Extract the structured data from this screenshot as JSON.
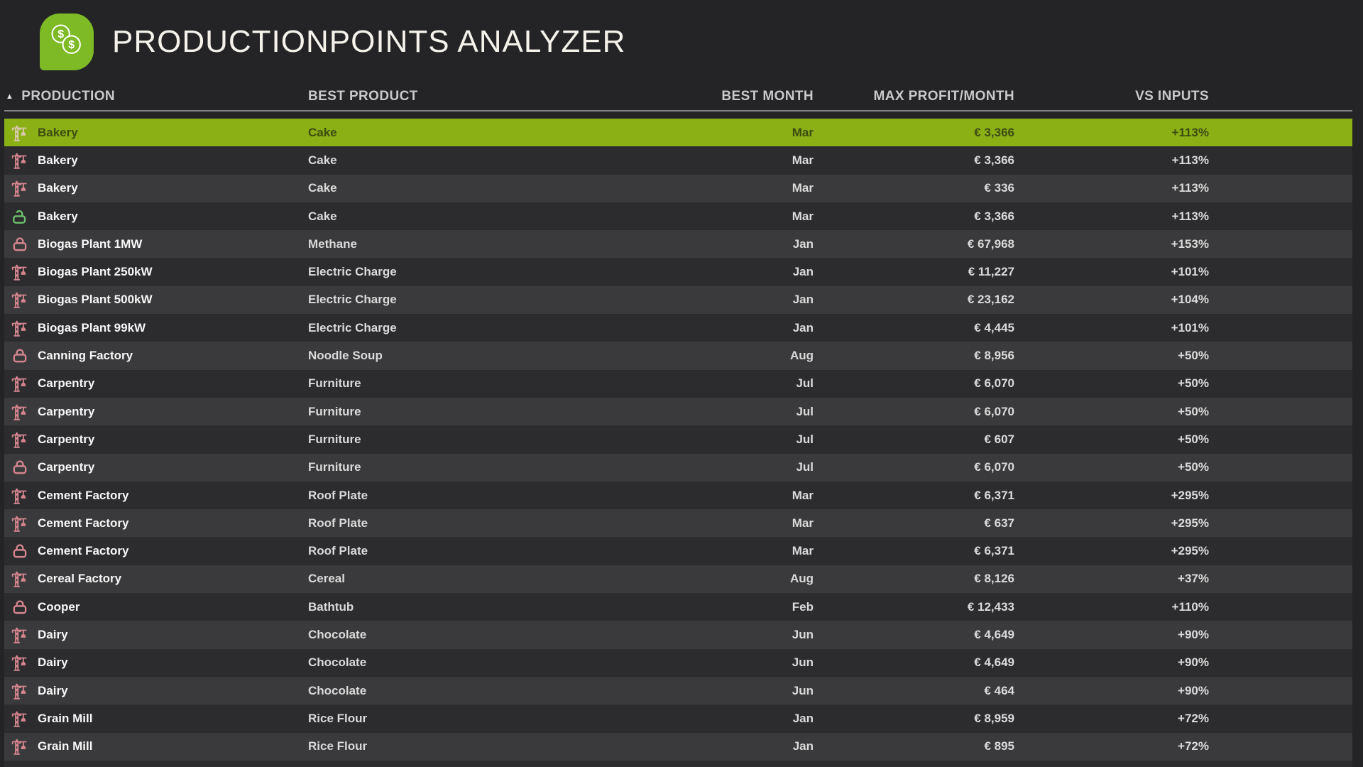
{
  "app": {
    "title": "PRODUCTIONPOINTS ANALYZER",
    "logo": {
      "icon": "coins-icon",
      "coin_symbol": "$"
    }
  },
  "colors": {
    "page_bg": "#242427",
    "row_dark": "#2c2c2e",
    "row_light": "#3a3a3c",
    "selected_bg": "#8ab015",
    "selected_text": "#3e4b13",
    "crane_icon": "#d4858f",
    "lock_icon": "#d4858f",
    "unlock_icon": "#6dc16d",
    "selected_icon": "#d9c9af",
    "logo_green": "#7eba26"
  },
  "table": {
    "sort_indicator": "▲",
    "sorted_by": "PRODUCTION",
    "headers": {
      "production": "PRODUCTION",
      "product": "BEST PRODUCT",
      "month": "BEST MONTH",
      "profit": "MAX PROFIT/MONTH",
      "vs": "VS INPUTS"
    },
    "rows": [
      {
        "icon": "crane-icon",
        "production": "Bakery",
        "product": "Cake",
        "month": "Mar",
        "profit": "€ 3,366",
        "vs": "+113%",
        "selected": true
      },
      {
        "icon": "crane-icon",
        "production": "Bakery",
        "product": "Cake",
        "month": "Mar",
        "profit": "€ 3,366",
        "vs": "+113%",
        "selected": false
      },
      {
        "icon": "crane-icon",
        "production": "Bakery",
        "product": "Cake",
        "month": "Mar",
        "profit": "€ 336",
        "vs": "+113%",
        "selected": false
      },
      {
        "icon": "unlock-icon",
        "production": "Bakery",
        "product": "Cake",
        "month": "Mar",
        "profit": "€ 3,366",
        "vs": "+113%",
        "selected": false
      },
      {
        "icon": "lock-icon",
        "production": "Biogas Plant 1MW",
        "product": "Methane",
        "month": "Jan",
        "profit": "€ 67,968",
        "vs": "+153%",
        "selected": false
      },
      {
        "icon": "crane-icon",
        "production": "Biogas Plant 250kW",
        "product": "Electric Charge",
        "month": "Jan",
        "profit": "€ 11,227",
        "vs": "+101%",
        "selected": false
      },
      {
        "icon": "crane-icon",
        "production": "Biogas Plant 500kW",
        "product": "Electric Charge",
        "month": "Jan",
        "profit": "€ 23,162",
        "vs": "+104%",
        "selected": false
      },
      {
        "icon": "crane-icon",
        "production": "Biogas Plant 99kW",
        "product": "Electric Charge",
        "month": "Jan",
        "profit": "€ 4,445",
        "vs": "+101%",
        "selected": false
      },
      {
        "icon": "lock-icon",
        "production": "Canning Factory",
        "product": "Noodle Soup",
        "month": "Aug",
        "profit": "€ 8,956",
        "vs": "+50%",
        "selected": false
      },
      {
        "icon": "crane-icon",
        "production": "Carpentry",
        "product": "Furniture",
        "month": "Jul",
        "profit": "€ 6,070",
        "vs": "+50%",
        "selected": false
      },
      {
        "icon": "crane-icon",
        "production": "Carpentry",
        "product": "Furniture",
        "month": "Jul",
        "profit": "€ 6,070",
        "vs": "+50%",
        "selected": false
      },
      {
        "icon": "crane-icon",
        "production": "Carpentry",
        "product": "Furniture",
        "month": "Jul",
        "profit": "€ 607",
        "vs": "+50%",
        "selected": false
      },
      {
        "icon": "lock-icon",
        "production": "Carpentry",
        "product": "Furniture",
        "month": "Jul",
        "profit": "€ 6,070",
        "vs": "+50%",
        "selected": false
      },
      {
        "icon": "crane-icon",
        "production": "Cement Factory",
        "product": "Roof Plate",
        "month": "Mar",
        "profit": "€ 6,371",
        "vs": "+295%",
        "selected": false
      },
      {
        "icon": "crane-icon",
        "production": "Cement Factory",
        "product": "Roof Plate",
        "month": "Mar",
        "profit": "€ 637",
        "vs": "+295%",
        "selected": false
      },
      {
        "icon": "lock-icon",
        "production": "Cement Factory",
        "product": "Roof Plate",
        "month": "Mar",
        "profit": "€ 6,371",
        "vs": "+295%",
        "selected": false
      },
      {
        "icon": "crane-icon",
        "production": "Cereal Factory",
        "product": "Cereal",
        "month": "Aug",
        "profit": "€ 8,126",
        "vs": "+37%",
        "selected": false
      },
      {
        "icon": "lock-icon",
        "production": "Cooper",
        "product": "Bathtub",
        "month": "Feb",
        "profit": "€ 12,433",
        "vs": "+110%",
        "selected": false
      },
      {
        "icon": "crane-icon",
        "production": "Dairy",
        "product": "Chocolate",
        "month": "Jun",
        "profit": "€ 4,649",
        "vs": "+90%",
        "selected": false
      },
      {
        "icon": "crane-icon",
        "production": "Dairy",
        "product": "Chocolate",
        "month": "Jun",
        "profit": "€ 4,649",
        "vs": "+90%",
        "selected": false
      },
      {
        "icon": "crane-icon",
        "production": "Dairy",
        "product": "Chocolate",
        "month": "Jun",
        "profit": "€ 464",
        "vs": "+90%",
        "selected": false
      },
      {
        "icon": "crane-icon",
        "production": "Grain Mill",
        "product": "Rice Flour",
        "month": "Jan",
        "profit": "€ 8,959",
        "vs": "+72%",
        "selected": false
      },
      {
        "icon": "crane-icon",
        "production": "Grain Mill",
        "product": "Rice Flour",
        "month": "Jan",
        "profit": "€ 895",
        "vs": "+72%",
        "selected": false
      }
    ],
    "partial_row": {
      "icon": "lock-icon"
    }
  }
}
